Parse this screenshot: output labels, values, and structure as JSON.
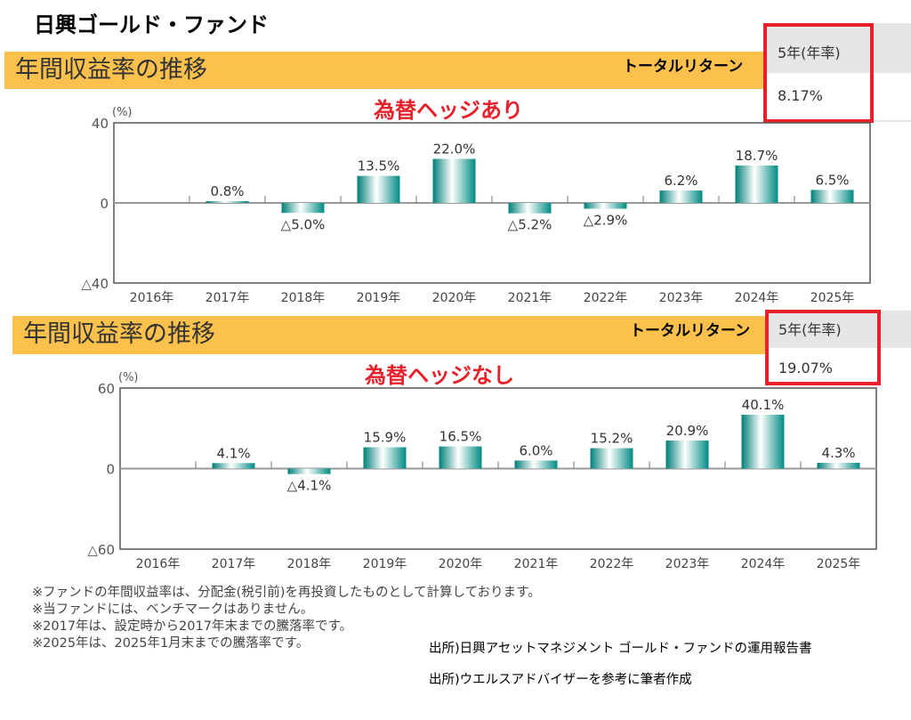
{
  "title": "日興ゴールド・ファンド",
  "colors": {
    "banner": "#FBC14C",
    "bar": "#008B84",
    "highlight": "#e8202a"
  },
  "sections": [
    {
      "banner": "年間収益率の推移",
      "total_return_label": "トータルリターン",
      "table_header": "5年(年率)",
      "table_value": "8.17%"
    },
    {
      "banner": "年間収益率の推移",
      "total_return_label": "トータルリターン",
      "table_header": "5年(年率)",
      "table_value": "19.07%"
    }
  ],
  "chart_data": [
    {
      "type": "bar",
      "title": "為替ヘッジあり",
      "ylabel": "(%)",
      "ylim": [
        -40,
        40
      ],
      "yticks": [
        "△40",
        "0",
        "40"
      ],
      "categories": [
        "2016年",
        "2017年",
        "2018年",
        "2019年",
        "2020年",
        "2021年",
        "2022年",
        "2023年",
        "2024年",
        "2025年"
      ],
      "values": [
        null,
        0.8,
        -5.0,
        13.5,
        22.0,
        -5.2,
        -2.9,
        6.2,
        18.7,
        6.5
      ],
      "labels": [
        "",
        "0.8%",
        "△5.0%",
        "13.5%",
        "22.0%",
        "△5.2%",
        "△2.9%",
        "6.2%",
        "18.7%",
        "6.5%"
      ]
    },
    {
      "type": "bar",
      "title": "為替ヘッジなし",
      "ylabel": "(%)",
      "ylim": [
        -60,
        60
      ],
      "yticks": [
        "△60",
        "0",
        "60"
      ],
      "categories": [
        "2016年",
        "2017年",
        "2018年",
        "2019年",
        "2020年",
        "2021年",
        "2022年",
        "2023年",
        "2024年",
        "2025年"
      ],
      "values": [
        null,
        4.1,
        -4.1,
        15.9,
        16.5,
        6.0,
        15.2,
        20.9,
        40.1,
        4.3
      ],
      "labels": [
        "",
        "4.1%",
        "△4.1%",
        "15.9%",
        "16.5%",
        "6.0%",
        "15.2%",
        "20.9%",
        "40.1%",
        "4.3%"
      ]
    }
  ],
  "notes": [
    "※ファンドの年間収益率は、分配金(税引前)を再投資したものとして計算しております。",
    "※当ファンドには、ベンチマークはありません。",
    "※2017年は、設定時から2017年末までの騰落率です。",
    "※2025年は、2025年1月末までの騰落率です。"
  ],
  "sources": [
    "出所)日興アセットマネジメント ゴールド・ファンドの運用報告書",
    "出所)ウエルスアドバイザーを参考に筆者作成"
  ]
}
